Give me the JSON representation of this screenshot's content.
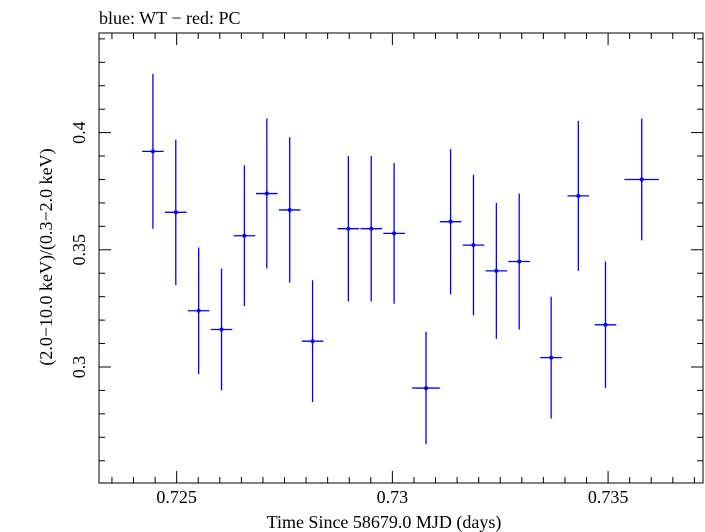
{
  "chart_data": {
    "type": "scatter",
    "title": "blue: WT − red: PC",
    "xlabel": "Time Since 58679.0 MJD (days)",
    "ylabel": "(2.0−10.0 keV)/(0.3−2.0 keV)",
    "xlim": [
      0.7232,
      0.7372
    ],
    "ylim": [
      0.2505,
      0.4425
    ],
    "xticks": [
      0.725,
      0.73,
      0.735
    ],
    "xtick_labels": [
      "0.725",
      "0.73",
      "0.735"
    ],
    "yticks": [
      0.3,
      0.35,
      0.4
    ],
    "ytick_labels": [
      "0.3",
      "0.35",
      "0.4"
    ],
    "x_minor_step": 0.0005,
    "y_minor_step": 0.01,
    "grid": false,
    "series": [
      {
        "color": "#0000ff",
        "points": [
          {
            "x": 0.72445,
            "y": 0.392,
            "xerr": 0.00025,
            "yerr_low": 0.033,
            "yerr_high": 0.033
          },
          {
            "x": 0.72498,
            "y": 0.366,
            "xerr": 0.00025,
            "yerr_low": 0.031,
            "yerr_high": 0.031
          },
          {
            "x": 0.72551,
            "y": 0.324,
            "xerr": 0.00025,
            "yerr_low": 0.027,
            "yerr_high": 0.027
          },
          {
            "x": 0.72604,
            "y": 0.316,
            "xerr": 0.00025,
            "yerr_low": 0.026,
            "yerr_high": 0.026
          },
          {
            "x": 0.72657,
            "y": 0.356,
            "xerr": 0.00025,
            "yerr_low": 0.03,
            "yerr_high": 0.03
          },
          {
            "x": 0.72709,
            "y": 0.374,
            "xerr": 0.00025,
            "yerr_low": 0.032,
            "yerr_high": 0.032
          },
          {
            "x": 0.72762,
            "y": 0.367,
            "xerr": 0.00025,
            "yerr_low": 0.031,
            "yerr_high": 0.031
          },
          {
            "x": 0.72815,
            "y": 0.311,
            "xerr": 0.00025,
            "yerr_low": 0.026,
            "yerr_high": 0.026
          },
          {
            "x": 0.72898,
            "y": 0.359,
            "xerr": 0.00025,
            "yerr_low": 0.031,
            "yerr_high": 0.031
          },
          {
            "x": 0.72951,
            "y": 0.359,
            "xerr": 0.00025,
            "yerr_low": 0.031,
            "yerr_high": 0.031
          },
          {
            "x": 0.73004,
            "y": 0.357,
            "xerr": 0.00025,
            "yerr_low": 0.03,
            "yerr_high": 0.03
          },
          {
            "x": 0.73078,
            "y": 0.291,
            "xerr": 0.00032,
            "yerr_low": 0.024,
            "yerr_high": 0.024
          },
          {
            "x": 0.73135,
            "y": 0.362,
            "xerr": 0.00025,
            "yerr_low": 0.031,
            "yerr_high": 0.031
          },
          {
            "x": 0.73188,
            "y": 0.352,
            "xerr": 0.00025,
            "yerr_low": 0.03,
            "yerr_high": 0.03
          },
          {
            "x": 0.73241,
            "y": 0.341,
            "xerr": 0.00025,
            "yerr_low": 0.029,
            "yerr_high": 0.029
          },
          {
            "x": 0.73294,
            "y": 0.345,
            "xerr": 0.00025,
            "yerr_low": 0.029,
            "yerr_high": 0.029
          },
          {
            "x": 0.73368,
            "y": 0.304,
            "xerr": 0.00025,
            "yerr_low": 0.026,
            "yerr_high": 0.026
          },
          {
            "x": 0.73431,
            "y": 0.373,
            "xerr": 0.00025,
            "yerr_low": 0.032,
            "yerr_high": 0.032
          },
          {
            "x": 0.73494,
            "y": 0.318,
            "xerr": 0.00025,
            "yerr_low": 0.027,
            "yerr_high": 0.027
          },
          {
            "x": 0.73578,
            "y": 0.38,
            "xerr": 0.0004,
            "yerr_low": 0.026,
            "yerr_high": 0.026
          }
        ]
      }
    ]
  }
}
